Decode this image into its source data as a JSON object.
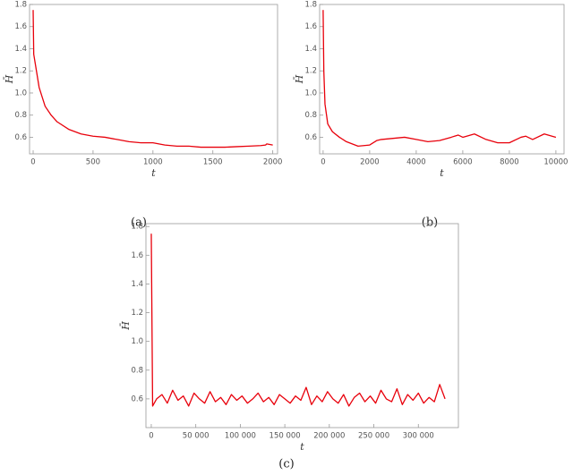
{
  "chart_data": [
    {
      "type": "line",
      "caption": "(a)",
      "x_label": "t",
      "y_label": "H̄",
      "xlim": [
        -30,
        2040
      ],
      "ylim": [
        0.45,
        1.8
      ],
      "xticks": [
        0,
        500,
        1000,
        1500,
        2000
      ],
      "yticks": [
        0.6,
        0.8,
        {
          "value": 1,
          "label": "1.0"
        },
        1.2,
        1.4,
        1.6,
        1.8
      ],
      "x": [
        0,
        5,
        20,
        50,
        100,
        150,
        200,
        300,
        400,
        500,
        600,
        700,
        800,
        900,
        1000,
        1100,
        1200,
        1300,
        1400,
        1500,
        1600,
        1700,
        1800,
        1900,
        1940,
        1950,
        2000
      ],
      "series": [
        {
          "color": "#e8000b",
          "values": [
            1.75,
            1.35,
            1.25,
            1.05,
            0.88,
            0.8,
            0.74,
            0.67,
            0.63,
            0.61,
            0.6,
            0.58,
            0.56,
            0.55,
            0.55,
            0.53,
            0.52,
            0.52,
            0.51,
            0.51,
            0.51,
            0.515,
            0.52,
            0.525,
            0.53,
            0.54,
            0.53
          ]
        }
      ]
    },
    {
      "type": "line",
      "caption": "(b)",
      "x_label": "t",
      "y_label": "H̄",
      "xlim": [
        -150,
        10350
      ],
      "ylim": [
        0.45,
        1.8
      ],
      "xticks": [
        0,
        2000,
        4000,
        6000,
        8000,
        10000
      ],
      "yticks": [
        0.6,
        0.8,
        {
          "value": 1,
          "label": "1.0"
        },
        1.2,
        1.4,
        1.6,
        1.8
      ],
      "x": [
        0,
        30,
        80,
        200,
        400,
        700,
        1000,
        1500,
        2000,
        2300,
        2500,
        3000,
        3500,
        4000,
        4500,
        5000,
        5500,
        5800,
        6000,
        6500,
        7000,
        7500,
        8000,
        8500,
        8700,
        9000,
        9500,
        10000
      ],
      "series": [
        {
          "color": "#e8000b",
          "values": [
            1.75,
            1.2,
            0.9,
            0.72,
            0.65,
            0.6,
            0.56,
            0.52,
            0.53,
            0.57,
            0.58,
            0.59,
            0.6,
            0.58,
            0.56,
            0.57,
            0.6,
            0.62,
            0.6,
            0.63,
            0.58,
            0.55,
            0.55,
            0.6,
            0.61,
            0.58,
            0.63,
            0.6
          ]
        }
      ]
    },
    {
      "type": "line",
      "caption": "(c)",
      "x_label": "t",
      "y_label": "H̄",
      "xlim": [
        -6000,
        345000
      ],
      "ylim": [
        0.4,
        1.82
      ],
      "xticks": [
        0,
        {
          "value": 50000,
          "label": "50 000"
        },
        {
          "value": 100000,
          "label": "100 000"
        },
        {
          "value": 150000,
          "label": "150 000"
        },
        {
          "value": 200000,
          "label": "200 000"
        },
        {
          "value": 250000,
          "label": "250 000"
        },
        {
          "value": 300000,
          "label": "300 000"
        }
      ],
      "yticks": [
        0.6,
        0.8,
        {
          "value": 1,
          "label": "1.0"
        },
        1.2,
        1.4,
        1.6,
        1.8
      ],
      "x": [
        0,
        1500,
        6000,
        12000,
        18000,
        24000,
        30000,
        36000,
        42000,
        48000,
        54000,
        60000,
        66000,
        72000,
        78000,
        84000,
        90000,
        96000,
        102000,
        108000,
        114000,
        120000,
        126000,
        132000,
        138000,
        144000,
        150000,
        156000,
        162000,
        168000,
        174000,
        180000,
        186000,
        192000,
        198000,
        204000,
        210000,
        216000,
        222000,
        228000,
        234000,
        240000,
        246000,
        252000,
        258000,
        264000,
        270000,
        276000,
        282000,
        288000,
        294000,
        300000,
        306000,
        312000,
        318000,
        324000,
        330000
      ],
      "series": [
        {
          "color": "#e8000b",
          "values": [
            1.75,
            0.55,
            0.6,
            0.63,
            0.57,
            0.66,
            0.59,
            0.62,
            0.55,
            0.64,
            0.6,
            0.57,
            0.65,
            0.58,
            0.61,
            0.56,
            0.63,
            0.59,
            0.62,
            0.57,
            0.6,
            0.64,
            0.58,
            0.61,
            0.56,
            0.63,
            0.6,
            0.57,
            0.62,
            0.59,
            0.68,
            0.56,
            0.62,
            0.58,
            0.65,
            0.6,
            0.57,
            0.63,
            0.55,
            0.61,
            0.64,
            0.58,
            0.62,
            0.57,
            0.66,
            0.6,
            0.58,
            0.67,
            0.56,
            0.63,
            0.59,
            0.64,
            0.57,
            0.61,
            0.58,
            0.7,
            0.6
          ]
        }
      ]
    }
  ]
}
